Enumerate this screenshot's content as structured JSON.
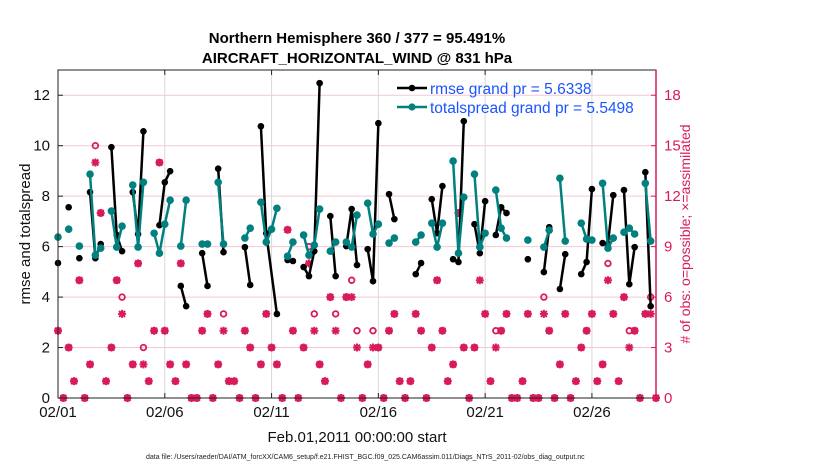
{
  "chart_data": {
    "type": "line",
    "title": [
      "Northern Hemisphere 360 / 377 = 95.491%",
      "AIRCRAFT_HORIZONTAL_WIND @ 831 hPa"
    ],
    "xlabel": "Feb.01,2011 00:00:00 start",
    "ylabel": "rmse and totalspread",
    "ylabel_right": "# of obs: o=possible; ×=assimilated",
    "caption": "data file: /Users/raeder/DAI/ATM_forcXX/CAM6_setup/f.e21.FHIST_BGC.f09_025.CAM6assim.011/Diags_NTrS_2011-02/obs_diag_output.nc",
    "x_units": "days since 02/01 00:00",
    "xlim": [
      0,
      28
    ],
    "ylim": [
      0,
      13
    ],
    "ylim_right": [
      0,
      19.5
    ],
    "x_ticks": [
      {
        "value": 0,
        "label": "02/01"
      },
      {
        "value": 5,
        "label": "02/06"
      },
      {
        "value": 10,
        "label": "02/11"
      },
      {
        "value": 15,
        "label": "02/16"
      },
      {
        "value": 20,
        "label": "02/21"
      },
      {
        "value": 25,
        "label": "02/26"
      }
    ],
    "y_ticks": [
      {
        "value": 0,
        "label": "0"
      },
      {
        "value": 2,
        "label": "2"
      },
      {
        "value": 4,
        "label": "4"
      },
      {
        "value": 6,
        "label": "6"
      },
      {
        "value": 8,
        "label": "8"
      },
      {
        "value": 10,
        "label": "10"
      },
      {
        "value": 12,
        "label": "12"
      }
    ],
    "y_ticks_right": [
      {
        "value": 0,
        "label": "0"
      },
      {
        "value": 3,
        "label": "3"
      },
      {
        "value": 6,
        "label": "6"
      },
      {
        "value": 9,
        "label": "9"
      },
      {
        "value": 12,
        "label": "12"
      },
      {
        "value": 15,
        "label": "15"
      },
      {
        "value": 18,
        "label": "18"
      }
    ],
    "grid": "x major (gray), right-axis major (pink)",
    "legend_position": "top-right",
    "colors": {
      "rmse": "#000000",
      "totalspread": "#00807f",
      "obs": "#d81b5a",
      "legend_text": "#1a55ff"
    },
    "series": [
      {
        "name": "rmse",
        "legend": "rmse grand pr = 5.6338",
        "segments": [
          [
            [
              0,
              5.35
            ]
          ],
          [
            [
              0.5,
              7.56
            ]
          ],
          [
            [
              1.0,
              5.54
            ]
          ],
          [
            [
              1.5,
              8.16
            ],
            [
              1.75,
              5.54
            ],
            [
              2.0,
              6.1
            ]
          ],
          [
            [
              2.5,
              9.94
            ],
            [
              2.75,
              6.46
            ],
            [
              3.0,
              5.82
            ]
          ],
          [
            [
              3.5,
              8.16
            ],
            [
              3.75,
              6.5
            ],
            [
              4.0,
              10.57
            ]
          ],
          [
            [
              4.75,
              6.85
            ],
            [
              5.0,
              8.55
            ],
            [
              5.25,
              8.99
            ]
          ],
          [
            [
              5.75,
              4.44
            ],
            [
              6.0,
              3.64
            ]
          ],
          [
            [
              6.75,
              5.74
            ],
            [
              7.0,
              4.44
            ]
          ],
          [
            [
              7.5,
              9.09
            ],
            [
              7.75,
              5.78
            ]
          ],
          [
            [
              8.75,
              5.98
            ],
            [
              9.0,
              4.48
            ]
          ],
          [
            [
              9.5,
              10.77
            ],
            [
              9.75,
              6.53
            ],
            [
              10.25,
              3.33
            ]
          ],
          [
            [
              10.75,
              5.47
            ],
            [
              11.0,
              5.43
            ]
          ],
          [
            [
              11.5,
              5.19
            ],
            [
              11.75,
              4.83
            ],
            [
              12.0,
              5.82
            ],
            [
              12.25,
              12.48
            ]
          ],
          [
            [
              12.75,
              7.21
            ],
            [
              13.0,
              4.83
            ]
          ],
          [
            [
              13.5,
              6.02
            ],
            [
              13.75,
              7.49
            ],
            [
              14.0,
              5.27
            ]
          ],
          [
            [
              14.5,
              5.9
            ],
            [
              14.75,
              4.63
            ],
            [
              15.0,
              10.89
            ]
          ],
          [
            [
              15.5,
              8.08
            ],
            [
              15.75,
              7.09
            ]
          ],
          [
            [
              16.75,
              4.91
            ],
            [
              17.0,
              5.35
            ]
          ],
          [
            [
              17.5,
              7.88
            ],
            [
              17.75,
              6.53
            ],
            [
              18.0,
              8.4
            ]
          ],
          [
            [
              18.5,
              5.5
            ],
            [
              18.75,
              5.39
            ],
            [
              19.0,
              10.97
            ]
          ],
          [
            [
              19.5,
              6.89
            ],
            [
              19.75,
              5.74
            ],
            [
              20.0,
              7.8
            ]
          ],
          [
            [
              20.5,
              6.46
            ],
            [
              20.75,
              7.56
            ],
            [
              21.0,
              7.33
            ]
          ],
          [
            [
              22.0,
              5.5
            ]
          ],
          [
            [
              22.75,
              4.99
            ],
            [
              23.0,
              6.77
            ]
          ],
          [
            [
              23.5,
              4.32
            ],
            [
              23.75,
              5.7
            ]
          ],
          [
            [
              24.5,
              4.91
            ],
            [
              24.75,
              5.39
            ],
            [
              25.0,
              8.28
            ]
          ],
          [
            [
              25.5,
              6.14
            ],
            [
              25.75,
              6.1
            ],
            [
              26.0,
              8.04
            ]
          ],
          [
            [
              26.5,
              8.24
            ],
            [
              26.75,
              4.51
            ],
            [
              27.0,
              5.98
            ]
          ],
          [
            [
              27.5,
              8.95
            ],
            [
              27.75,
              3.64
            ]
          ]
        ]
      },
      {
        "name": "totalspread",
        "legend": "totalspread grand pr = 5.5498",
        "segments": [
          [
            [
              0,
              6.38
            ]
          ],
          [
            [
              0.5,
              6.69
            ]
          ],
          [
            [
              1.0,
              6.02
            ]
          ],
          [
            [
              1.5,
              8.87
            ],
            [
              1.75,
              5.66
            ],
            [
              2.0,
              5.94
            ]
          ],
          [
            [
              2.5,
              7.41
            ],
            [
              2.75,
              5.98
            ],
            [
              3.0,
              6.81
            ]
          ],
          [
            [
              3.5,
              8.44
            ],
            [
              3.75,
              5.98
            ],
            [
              4.0,
              8.55
            ]
          ],
          [
            [
              4.5,
              6.53
            ],
            [
              4.75,
              5.74
            ],
            [
              5.0,
              6.89
            ],
            [
              5.25,
              7.84
            ]
          ],
          [
            [
              5.75,
              6.02
            ],
            [
              6.0,
              7.84
            ]
          ],
          [
            [
              6.75,
              6.1
            ],
            [
              7.0,
              6.1
            ]
          ],
          [
            [
              7.5,
              8.55
            ],
            [
              7.75,
              6.1
            ]
          ],
          [
            [
              8.75,
              6.34
            ],
            [
              9.0,
              6.73
            ]
          ],
          [
            [
              9.5,
              7.76
            ],
            [
              9.75,
              6.18
            ],
            [
              10.0,
              6.69
            ],
            [
              10.25,
              7.52
            ]
          ],
          [
            [
              10.75,
              5.62
            ],
            [
              11.0,
              6.18
            ]
          ],
          [
            [
              11.5,
              6.46
            ],
            [
              11.75,
              5.66
            ],
            [
              12.0,
              6.06
            ],
            [
              12.25,
              7.49
            ]
          ],
          [
            [
              12.75,
              5.82
            ],
            [
              13.0,
              6.18
            ]
          ],
          [
            [
              13.5,
              6.18
            ],
            [
              13.75,
              5.98
            ],
            [
              14.0,
              7.25
            ]
          ],
          [
            [
              14.5,
              7.72
            ],
            [
              14.75,
              6.5
            ],
            [
              15.0,
              6.89
            ]
          ],
          [
            [
              15.5,
              6.14
            ],
            [
              15.75,
              6.34
            ]
          ],
          [
            [
              16.75,
              6.18
            ],
            [
              17.0,
              6.46
            ]
          ],
          [
            [
              17.5,
              6.93
            ],
            [
              17.75,
              5.98
            ],
            [
              18.0,
              6.93
            ]
          ],
          [
            [
              18.5,
              9.39
            ],
            [
              18.75,
              5.74
            ],
            [
              19.0,
              7.96
            ]
          ],
          [
            [
              19.5,
              8.87
            ],
            [
              19.75,
              5.98
            ],
            [
              20.0,
              6.53
            ]
          ],
          [
            [
              20.5,
              8.24
            ],
            [
              20.75,
              6.73
            ],
            [
              21.0,
              6.34
            ]
          ],
          [
            [
              22.0,
              6.26
            ]
          ],
          [
            [
              22.75,
              5.98
            ],
            [
              23.0,
              6.65
            ]
          ],
          [
            [
              23.5,
              8.71
            ],
            [
              23.75,
              6.22
            ]
          ],
          [
            [
              24.5,
              6.93
            ],
            [
              24.75,
              6.3
            ],
            [
              25.0,
              6.26
            ]
          ],
          [
            [
              25.5,
              8.51
            ],
            [
              25.75,
              5.94
            ],
            [
              26.0,
              6.34
            ]
          ],
          [
            [
              26.5,
              6.57
            ],
            [
              26.75,
              6.73
            ],
            [
              27.0,
              6.5
            ]
          ],
          [
            [
              27.5,
              8.51
            ],
            [
              27.75,
              6.22
            ]
          ]
        ]
      }
    ],
    "obs": {
      "x_start": 0,
      "x_step": 0.25,
      "assimilated": [
        4,
        0,
        3,
        1,
        7,
        0,
        2,
        14,
        11,
        1,
        3,
        7,
        5,
        0,
        2,
        8,
        2,
        1,
        4,
        14,
        4,
        2,
        1,
        8,
        2,
        0,
        0,
        4,
        5,
        0,
        2,
        4,
        1,
        1,
        0,
        4,
        3,
        0,
        2,
        5,
        3,
        2,
        0,
        10,
        4,
        0,
        3,
        8,
        4,
        2,
        1,
        6,
        4,
        0,
        6,
        6,
        3,
        0,
        2,
        3,
        3,
        0,
        4,
        5,
        1,
        0,
        1,
        5,
        4,
        0,
        3,
        7,
        4,
        1,
        2,
        11,
        3,
        0,
        3,
        7,
        5,
        1,
        3,
        4,
        5,
        0,
        0,
        1,
        5,
        0,
        0,
        5,
        4,
        0,
        2,
        5,
        0,
        1,
        3,
        4,
        5,
        1,
        2,
        7,
        5,
        1,
        6,
        3,
        4,
        0,
        5,
        5,
        0
      ],
      "possible": [
        4,
        0,
        3,
        1,
        7,
        0,
        2,
        15,
        11,
        1,
        3,
        7,
        6,
        0,
        2,
        8,
        3,
        1,
        4,
        14,
        4,
        2,
        1,
        8,
        2,
        0,
        0,
        4,
        5,
        0,
        2,
        5,
        1,
        1,
        0,
        4,
        3,
        0,
        2,
        5,
        3,
        2,
        0,
        10,
        4,
        0,
        3,
        9,
        5,
        2,
        1,
        6,
        5,
        0,
        6,
        7,
        4,
        0,
        2,
        4,
        3,
        0,
        4,
        5,
        1,
        0,
        1,
        5,
        4,
        0,
        3,
        7,
        4,
        1,
        2,
        11,
        3,
        0,
        3,
        9,
        5,
        1,
        4,
        4,
        5,
        0,
        0,
        1,
        5,
        0,
        0,
        6,
        4,
        0,
        2,
        5,
        0,
        1,
        3,
        4,
        5,
        1,
        2,
        8,
        5,
        1,
        6,
        4,
        4,
        0,
        5,
        6,
        0
      ]
    }
  }
}
